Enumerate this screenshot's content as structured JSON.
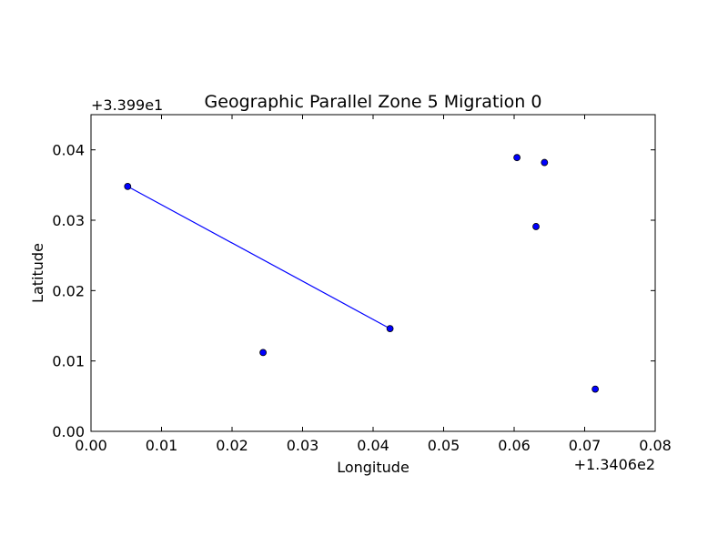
{
  "chart_data": {
    "type": "scatter",
    "title": "Geographic Parallel Zone 5 Migration 0",
    "xlabel": "Longitude",
    "ylabel": "Latitude",
    "x_offset_label": "+1.3406e2",
    "y_offset_label": "+3.399e1",
    "xlim": [
      0.0,
      0.08
    ],
    "ylim": [
      0.0,
      0.045
    ],
    "x_ticks": [
      0.0,
      0.01,
      0.02,
      0.03,
      0.04,
      0.05,
      0.06,
      0.07,
      0.08
    ],
    "x_tick_labels": [
      "0.00",
      "0.01",
      "0.02",
      "0.03",
      "0.04",
      "0.05",
      "0.06",
      "0.07",
      "0.08"
    ],
    "y_ticks": [
      0.0,
      0.01,
      0.02,
      0.03,
      0.04
    ],
    "y_tick_labels": [
      "0.00",
      "0.01",
      "0.02",
      "0.03",
      "0.04"
    ],
    "grid": false,
    "colors": {
      "points": "#0000ff",
      "line": "#0000ff",
      "edge": "#000000"
    },
    "points": [
      {
        "x": 0.0052,
        "y": 0.0348
      },
      {
        "x": 0.0244,
        "y": 0.0112
      },
      {
        "x": 0.0424,
        "y": 0.0146
      },
      {
        "x": 0.0604,
        "y": 0.0389
      },
      {
        "x": 0.0643,
        "y": 0.0382
      },
      {
        "x": 0.0631,
        "y": 0.0291
      },
      {
        "x": 0.0715,
        "y": 0.006
      }
    ],
    "lines": [
      {
        "x": [
          0.0052,
          0.0424
        ],
        "y": [
          0.0348,
          0.0146
        ]
      }
    ]
  }
}
